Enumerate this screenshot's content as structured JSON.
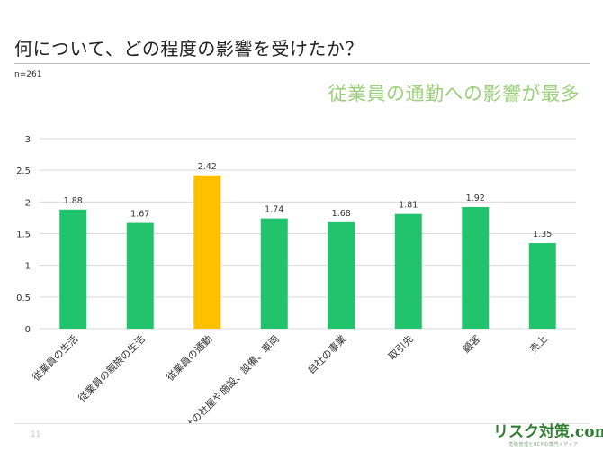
{
  "slide": {
    "title": "何について、どの程度の影響を受けたか？",
    "sample_note": "n=261",
    "headline": "従業員の通勤への影響が最多",
    "page_number": "11"
  },
  "logo": {
    "text": "リスク対策.com",
    "tagline": "危機管理とBCPの専門メディア"
  },
  "colors": {
    "bar_default": "#22c36d",
    "bar_highlight": "#ffc000",
    "headline": "#9bcf7a",
    "gridline": "#d9d9d9"
  },
  "chart_data": {
    "type": "bar",
    "title": "",
    "xlabel": "",
    "ylabel": "",
    "categories": [
      "従業員の生活",
      "従業員の親族の生活",
      "従業員の通勤",
      "自社の社屋や施設、設備、車両",
      "自社の事業",
      "取引先",
      "顧客",
      "売上"
    ],
    "values": [
      1.88,
      1.67,
      2.42,
      1.74,
      1.68,
      1.81,
      1.92,
      1.35
    ],
    "value_labels": [
      "1.88",
      "1.67",
      "2.42",
      "1.74",
      "1.68",
      "1.81",
      "1.92",
      "1.35"
    ],
    "highlight_index": 2,
    "ylim": [
      0,
      3
    ],
    "yticks": [
      "0",
      "0.5",
      "1",
      "1.5",
      "2",
      "2.5",
      "3"
    ],
    "grid": true,
    "legend": "none"
  }
}
